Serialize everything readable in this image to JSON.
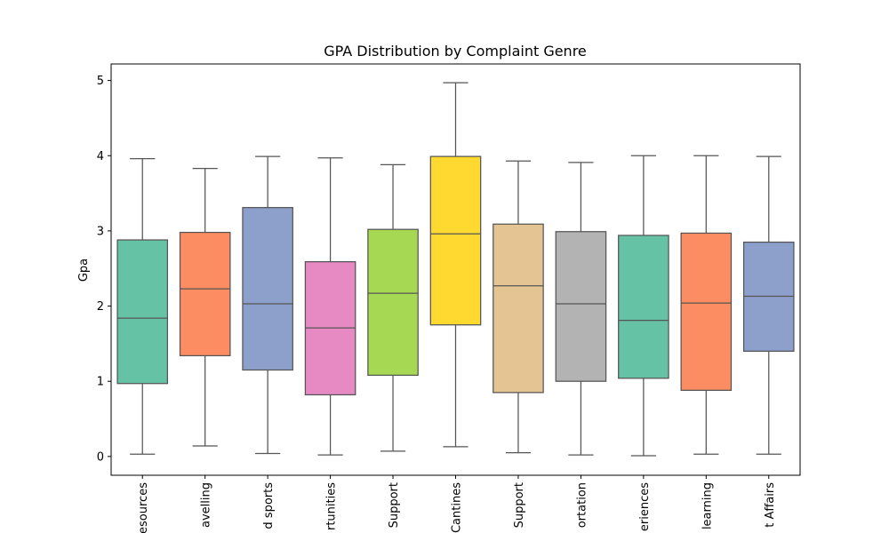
{
  "chart_data": {
    "type": "box",
    "title": "GPA Distribution by Complaint Genre",
    "xlabel": "",
    "ylabel": "Gpa",
    "ylim": [
      -0.25,
      5.22
    ],
    "yticks": [
      0,
      1,
      2,
      3,
      4,
      5
    ],
    "ytick_labels": [
      "0",
      "1",
      "2",
      "3",
      "4",
      "5"
    ],
    "grid": false,
    "legend": "none",
    "categories": [
      "esources",
      "avelling",
      "d sports",
      "rtunities",
      "Support",
      "Cantines",
      "Support",
      "ortation",
      "eriences",
      "learning",
      "t Affairs"
    ],
    "boxes": [
      {
        "whisker_low": 0.03,
        "q1": 0.97,
        "median": 1.84,
        "q3": 2.88,
        "whisker_high": 3.96,
        "color": "#66c2a5"
      },
      {
        "whisker_low": 0.14,
        "q1": 1.34,
        "median": 2.23,
        "q3": 2.98,
        "whisker_high": 3.83,
        "color": "#fc8d62"
      },
      {
        "whisker_low": 0.04,
        "q1": 1.15,
        "median": 2.03,
        "q3": 3.31,
        "whisker_high": 3.99,
        "color": "#8da0cb"
      },
      {
        "whisker_low": 0.02,
        "q1": 0.82,
        "median": 1.71,
        "q3": 2.59,
        "whisker_high": 3.97,
        "color": "#e78ac3"
      },
      {
        "whisker_low": 0.07,
        "q1": 1.08,
        "median": 2.17,
        "q3": 3.02,
        "whisker_high": 3.88,
        "color": "#a6d854"
      },
      {
        "whisker_low": 0.13,
        "q1": 1.75,
        "median": 2.96,
        "q3": 3.99,
        "whisker_high": 4.97,
        "color": "#ffd92f"
      },
      {
        "whisker_low": 0.05,
        "q1": 0.85,
        "median": 2.27,
        "q3": 3.09,
        "whisker_high": 3.93,
        "color": "#e5c494"
      },
      {
        "whisker_low": 0.02,
        "q1": 1.0,
        "median": 2.03,
        "q3": 2.99,
        "whisker_high": 3.91,
        "color": "#b3b3b3"
      },
      {
        "whisker_low": 0.01,
        "q1": 1.04,
        "median": 1.81,
        "q3": 2.94,
        "whisker_high": 4.0,
        "color": "#66c2a5"
      },
      {
        "whisker_low": 0.03,
        "q1": 0.88,
        "median": 2.04,
        "q3": 2.97,
        "whisker_high": 4.0,
        "color": "#fc8d62"
      },
      {
        "whisker_low": 0.03,
        "q1": 1.4,
        "median": 2.13,
        "q3": 2.85,
        "whisker_high": 3.99,
        "color": "#8da0cb"
      }
    ]
  }
}
